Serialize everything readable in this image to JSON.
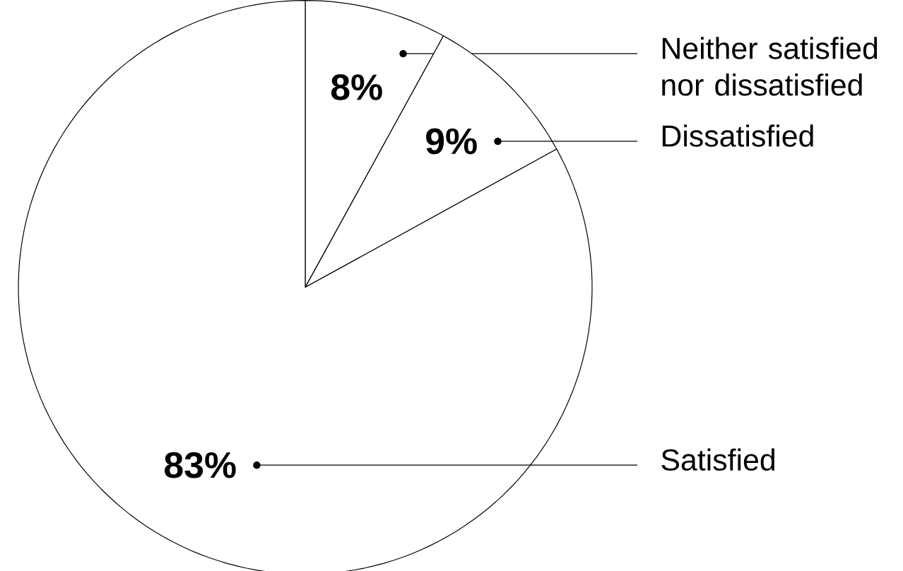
{
  "chart_data": {
    "type": "pie",
    "categories": [
      "Neither satisfied nor dissatisfied",
      "Dissatisfied",
      "Satisfied"
    ],
    "values": [
      8,
      9,
      83
    ],
    "value_labels": [
      "8%",
      "9%",
      "83%"
    ],
    "colors": [
      "#ffffff",
      "#ffffff",
      "#ffffff"
    ]
  }
}
